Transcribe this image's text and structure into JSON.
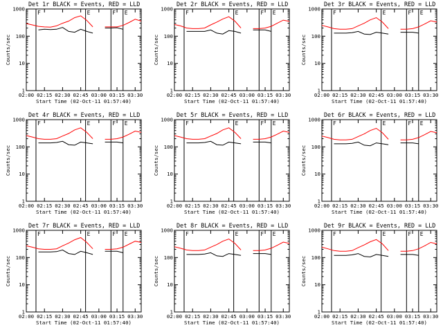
{
  "chart_data": [
    {
      "type": "line",
      "title": "Det 1r BLACK = Events, RED = LLD",
      "xlabel": "Start Time (02-Oct-11 01:57:40)",
      "ylabel": "Counts/sec",
      "yscale": "log",
      "ylim": [
        1,
        1000
      ],
      "xlim": [
        "02:00",
        "03:35"
      ],
      "xticks": [
        "02:00",
        "02:15",
        "02:30",
        "02:45",
        "03:00",
        "03:15",
        "03:30"
      ],
      "yticks": [
        "1",
        "10",
        "100",
        "1000"
      ],
      "x": [
        "02:00",
        "02:05",
        "02:10",
        "02:15",
        "02:20",
        "02:25",
        "02:30",
        "02:35",
        "02:40",
        "02:45",
        "02:50",
        "02:55",
        "03:00",
        "03:05",
        "03:10",
        "03:15",
        "03:20",
        "03:25",
        "03:30",
        "03:35"
      ],
      "series": [
        {
          "name": "Events",
          "color": "#000000",
          "values": [
            null,
            null,
            170,
            180,
            175,
            180,
            210,
            150,
            140,
            180,
            150,
            130,
            null,
            200,
            200,
            205,
            180,
            null,
            null,
            null
          ]
        },
        {
          "name": "LLD",
          "color": "#ff0000",
          "values": [
            290,
            260,
            230,
            220,
            215,
            240,
            300,
            360,
            480,
            560,
            380,
            220,
            null,
            220,
            220,
            220,
            250,
            320,
            420,
            360
          ]
        }
      ],
      "flags": [
        {
          "label": "F",
          "time": "02:08"
        },
        {
          "label": "E",
          "time": "02:49"
        },
        {
          "label": "F",
          "time": "03:10"
        },
        {
          "label": "E",
          "time": "03:20"
        }
      ]
    },
    {
      "type": "line",
      "title": "Det 2r BLACK = Events, RED = LLD",
      "xlabel": "Start Time (02-Oct-11 01:57:40)",
      "ylabel": "Counts/sec",
      "yscale": "log",
      "ylim": [
        1,
        1000
      ],
      "xlim": [
        "02:00",
        "03:35"
      ],
      "xticks": [
        "02:00",
        "02:15",
        "02:30",
        "02:45",
        "03:00",
        "03:15",
        "03:30"
      ],
      "yticks": [
        "1",
        "10",
        "100",
        "1000"
      ],
      "x": [
        "02:00",
        "02:05",
        "02:10",
        "02:15",
        "02:20",
        "02:25",
        "02:30",
        "02:35",
        "02:40",
        "02:45",
        "02:50",
        "02:55",
        "03:00",
        "03:05",
        "03:10",
        "03:15",
        "03:20",
        "03:25",
        "03:30",
        "03:35"
      ],
      "series": [
        {
          "name": "Events",
          "color": "#000000",
          "values": [
            null,
            null,
            150,
            150,
            150,
            150,
            170,
            130,
            120,
            160,
            150,
            130,
            null,
            170,
            170,
            170,
            150,
            null,
            null,
            null
          ]
        },
        {
          "name": "LLD",
          "color": "#ff0000",
          "values": [
            270,
            240,
            200,
            190,
            190,
            200,
            260,
            330,
            430,
            520,
            360,
            200,
            null,
            190,
            190,
            200,
            230,
            300,
            390,
            350
          ]
        }
      ],
      "flags": [
        {
          "label": "F",
          "time": "02:08"
        },
        {
          "label": "E",
          "time": "02:49"
        },
        {
          "label": "F",
          "time": "03:10"
        },
        {
          "label": "E",
          "time": "03:20"
        }
      ]
    },
    {
      "type": "line",
      "title": "Det 3r BLACK = Events, RED = LLD",
      "xlabel": "Start Time (02-Oct-11 01:57:40)",
      "ylabel": "Counts/sec",
      "yscale": "log",
      "ylim": [
        1,
        1000
      ],
      "xlim": [
        "02:00",
        "03:35"
      ],
      "xticks": [
        "02:00",
        "02:15",
        "02:30",
        "02:45",
        "03:00",
        "03:15",
        "03:30"
      ],
      "yticks": [
        "1",
        "10",
        "100",
        "1000"
      ],
      "x": [
        "02:00",
        "02:05",
        "02:10",
        "02:15",
        "02:20",
        "02:25",
        "02:30",
        "02:35",
        "02:40",
        "02:45",
        "02:50",
        "02:55",
        "03:00",
        "03:05",
        "03:10",
        "03:15",
        "03:20",
        "03:25",
        "03:30",
        "03:35"
      ],
      "series": [
        {
          "name": "Events",
          "color": "#000000",
          "values": [
            null,
            null,
            130,
            130,
            130,
            135,
            150,
            120,
            115,
            140,
            130,
            120,
            null,
            140,
            140,
            140,
            130,
            null,
            null,
            null
          ]
        },
        {
          "name": "LLD",
          "color": "#ff0000",
          "values": [
            250,
            220,
            190,
            180,
            180,
            190,
            240,
            300,
            400,
            480,
            330,
            190,
            null,
            180,
            180,
            190,
            220,
            280,
            370,
            330
          ]
        }
      ],
      "flags": [
        {
          "label": "F",
          "time": "02:08"
        },
        {
          "label": "E",
          "time": "02:49"
        },
        {
          "label": "F",
          "time": "03:10"
        },
        {
          "label": "E",
          "time": "03:20"
        }
      ]
    },
    {
      "type": "line",
      "title": "Det 4r BLACK = Events, RED = LLD",
      "xlabel": "Start Time (02-Oct-11 01:57:40)",
      "ylabel": "Counts/sec",
      "yscale": "log",
      "ylim": [
        1,
        1000
      ],
      "xlim": [
        "02:00",
        "03:35"
      ],
      "xticks": [
        "02:00",
        "02:15",
        "02:30",
        "02:45",
        "03:00",
        "03:15",
        "03:30"
      ],
      "yticks": [
        "1",
        "10",
        "100",
        "1000"
      ],
      "x": [
        "02:00",
        "02:05",
        "02:10",
        "02:15",
        "02:20",
        "02:25",
        "02:30",
        "02:35",
        "02:40",
        "02:45",
        "02:50",
        "02:55",
        "03:00",
        "03:05",
        "03:10",
        "03:15",
        "03:20",
        "03:25",
        "03:30",
        "03:35"
      ],
      "series": [
        {
          "name": "Events",
          "color": "#000000",
          "values": [
            null,
            null,
            140,
            140,
            140,
            145,
            160,
            120,
            115,
            150,
            140,
            130,
            null,
            150,
            150,
            150,
            140,
            null,
            null,
            null
          ]
        },
        {
          "name": "LLD",
          "color": "#ff0000",
          "values": [
            260,
            230,
            200,
            190,
            190,
            200,
            250,
            310,
            420,
            500,
            340,
            200,
            null,
            190,
            190,
            200,
            230,
            290,
            380,
            340
          ]
        }
      ],
      "flags": [
        {
          "label": "F",
          "time": "02:08"
        },
        {
          "label": "E",
          "time": "02:49"
        },
        {
          "label": "F",
          "time": "03:10"
        },
        {
          "label": "E",
          "time": "03:20"
        }
      ]
    },
    {
      "type": "line",
      "title": "Det 5r BLACK = Events, RED = LLD",
      "xlabel": "Start Time (02-Oct-11 01:57:40)",
      "ylabel": "Counts/sec",
      "yscale": "log",
      "ylim": [
        1,
        1000
      ],
      "xlim": [
        "02:00",
        "03:35"
      ],
      "xticks": [
        "02:00",
        "02:15",
        "02:30",
        "02:45",
        "03:00",
        "03:15",
        "03:30"
      ],
      "yticks": [
        "1",
        "10",
        "100",
        "1000"
      ],
      "x": [
        "02:00",
        "02:05",
        "02:10",
        "02:15",
        "02:20",
        "02:25",
        "02:30",
        "02:35",
        "02:40",
        "02:45",
        "02:50",
        "02:55",
        "03:00",
        "03:05",
        "03:10",
        "03:15",
        "03:20",
        "03:25",
        "03:30",
        "03:35"
      ],
      "series": [
        {
          "name": "Events",
          "color": "#000000",
          "values": [
            null,
            null,
            140,
            140,
            140,
            145,
            160,
            120,
            115,
            150,
            140,
            130,
            null,
            150,
            150,
            150,
            140,
            null,
            null,
            null
          ]
        },
        {
          "name": "LLD",
          "color": "#ff0000",
          "values": [
            260,
            230,
            200,
            190,
            190,
            200,
            250,
            310,
            420,
            500,
            340,
            200,
            null,
            190,
            190,
            200,
            230,
            290,
            380,
            340
          ]
        }
      ],
      "flags": [
        {
          "label": "F",
          "time": "02:08"
        },
        {
          "label": "E",
          "time": "02:49"
        },
        {
          "label": "F",
          "time": "03:10"
        },
        {
          "label": "E",
          "time": "03:20"
        }
      ]
    },
    {
      "type": "line",
      "title": "Det 6r BLACK = Events, RED = LLD",
      "xlabel": "Start Time (02-Oct-11 01:57:40)",
      "ylabel": "Counts/sec",
      "yscale": "log",
      "ylim": [
        1,
        1000
      ],
      "xlim": [
        "02:00",
        "03:35"
      ],
      "xticks": [
        "02:00",
        "02:15",
        "02:30",
        "02:45",
        "03:00",
        "03:15",
        "03:30"
      ],
      "yticks": [
        "1",
        "10",
        "100",
        "1000"
      ],
      "x": [
        "02:00",
        "02:05",
        "02:10",
        "02:15",
        "02:20",
        "02:25",
        "02:30",
        "02:35",
        "02:40",
        "02:45",
        "02:50",
        "02:55",
        "03:00",
        "03:05",
        "03:10",
        "03:15",
        "03:20",
        "03:25",
        "03:30",
        "03:35"
      ],
      "series": [
        {
          "name": "Events",
          "color": "#000000",
          "values": [
            null,
            null,
            130,
            130,
            130,
            135,
            150,
            115,
            110,
            140,
            130,
            120,
            null,
            140,
            140,
            140,
            130,
            null,
            null,
            null
          ]
        },
        {
          "name": "LLD",
          "color": "#ff0000",
          "values": [
            250,
            220,
            190,
            180,
            180,
            190,
            240,
            300,
            400,
            480,
            330,
            190,
            null,
            180,
            180,
            190,
            220,
            280,
            370,
            330
          ]
        }
      ],
      "flags": [
        {
          "label": "F",
          "time": "02:08"
        },
        {
          "label": "E",
          "time": "02:49"
        },
        {
          "label": "F",
          "time": "03:10"
        },
        {
          "label": "E",
          "time": "03:20"
        }
      ]
    },
    {
      "type": "line",
      "title": "Det 7r BLACK = Events, RED = LLD",
      "xlabel": "Start Time (02-Oct-11 01:57:40)",
      "ylabel": "Counts/sec",
      "yscale": "log",
      "ylim": [
        1,
        1000
      ],
      "xlim": [
        "02:00",
        "03:35"
      ],
      "xticks": [
        "02:00",
        "02:15",
        "02:30",
        "02:45",
        "03:00",
        "03:15",
        "03:30"
      ],
      "yticks": [
        "1",
        "10",
        "100",
        "1000"
      ],
      "x": [
        "02:00",
        "02:05",
        "02:10",
        "02:15",
        "02:20",
        "02:25",
        "02:30",
        "02:35",
        "02:40",
        "02:45",
        "02:50",
        "02:55",
        "03:00",
        "03:05",
        "03:10",
        "03:15",
        "03:20",
        "03:25",
        "03:30",
        "03:35"
      ],
      "series": [
        {
          "name": "Events",
          "color": "#000000",
          "values": [
            null,
            null,
            160,
            160,
            160,
            165,
            190,
            140,
            130,
            170,
            150,
            130,
            null,
            170,
            170,
            170,
            150,
            null,
            null,
            null
          ]
        },
        {
          "name": "LLD",
          "color": "#ff0000",
          "values": [
            270,
            240,
            210,
            200,
            200,
            210,
            270,
            340,
            450,
            540,
            360,
            210,
            null,
            200,
            200,
            210,
            240,
            310,
            400,
            360
          ]
        }
      ],
      "flags": [
        {
          "label": "F",
          "time": "02:08"
        },
        {
          "label": "E",
          "time": "02:49"
        },
        {
          "label": "F",
          "time": "03:10"
        },
        {
          "label": "E",
          "time": "03:20"
        }
      ]
    },
    {
      "type": "line",
      "title": "Det 8r BLACK = Events, RED = LLD",
      "xlabel": "Start Time (02-Oct-11 01:57:40)",
      "ylabel": "Counts/sec",
      "yscale": "log",
      "ylim": [
        1,
        1000
      ],
      "xlim": [
        "02:00",
        "03:35"
      ],
      "xticks": [
        "02:00",
        "02:15",
        "02:30",
        "02:45",
        "03:00",
        "03:15",
        "03:30"
      ],
      "yticks": [
        "1",
        "10",
        "100",
        "1000"
      ],
      "x": [
        "02:00",
        "02:05",
        "02:10",
        "02:15",
        "02:20",
        "02:25",
        "02:30",
        "02:35",
        "02:40",
        "02:45",
        "02:50",
        "02:55",
        "03:00",
        "03:05",
        "03:10",
        "03:15",
        "03:20",
        "03:25",
        "03:30",
        "03:35"
      ],
      "series": [
        {
          "name": "Events",
          "color": "#000000",
          "values": [
            null,
            null,
            130,
            130,
            130,
            135,
            150,
            115,
            110,
            140,
            130,
            120,
            null,
            140,
            140,
            140,
            130,
            null,
            null,
            null
          ]
        },
        {
          "name": "LLD",
          "color": "#ff0000",
          "values": [
            250,
            220,
            190,
            180,
            180,
            190,
            240,
            300,
            400,
            480,
            330,
            190,
            null,
            180,
            180,
            190,
            220,
            280,
            370,
            330
          ]
        }
      ],
      "flags": [
        {
          "label": "F",
          "time": "02:08"
        },
        {
          "label": "E",
          "time": "02:49"
        },
        {
          "label": "F",
          "time": "03:10"
        },
        {
          "label": "E",
          "time": "03:20"
        }
      ]
    },
    {
      "type": "line",
      "title": "Det 9r BLACK = Events, RED = LLD",
      "xlabel": "Start Time (02-Oct-11 01:57:40)",
      "ylabel": "Counts/sec",
      "yscale": "log",
      "ylim": [
        1,
        1000
      ],
      "xlim": [
        "02:00",
        "03:35"
      ],
      "xticks": [
        "02:00",
        "02:15",
        "02:30",
        "02:45",
        "03:00",
        "03:15",
        "03:30"
      ],
      "yticks": [
        "1",
        "10",
        "100",
        "1000"
      ],
      "x": [
        "02:00",
        "02:05",
        "02:10",
        "02:15",
        "02:20",
        "02:25",
        "02:30",
        "02:35",
        "02:40",
        "02:45",
        "02:50",
        "02:55",
        "03:00",
        "03:05",
        "03:10",
        "03:15",
        "03:20",
        "03:25",
        "03:30",
        "03:35"
      ],
      "series": [
        {
          "name": "Events",
          "color": "#000000",
          "values": [
            null,
            null,
            120,
            120,
            120,
            125,
            140,
            110,
            105,
            130,
            120,
            110,
            null,
            130,
            130,
            130,
            120,
            null,
            null,
            null
          ]
        },
        {
          "name": "LLD",
          "color": "#ff0000",
          "values": [
            240,
            210,
            180,
            170,
            170,
            180,
            230,
            290,
            380,
            460,
            320,
            180,
            null,
            170,
            170,
            180,
            210,
            270,
            360,
            320
          ]
        }
      ],
      "flags": [
        {
          "label": "F",
          "time": "02:08"
        },
        {
          "label": "E",
          "time": "02:49"
        },
        {
          "label": "F",
          "time": "03:10"
        },
        {
          "label": "E",
          "time": "03:20"
        }
      ]
    }
  ]
}
